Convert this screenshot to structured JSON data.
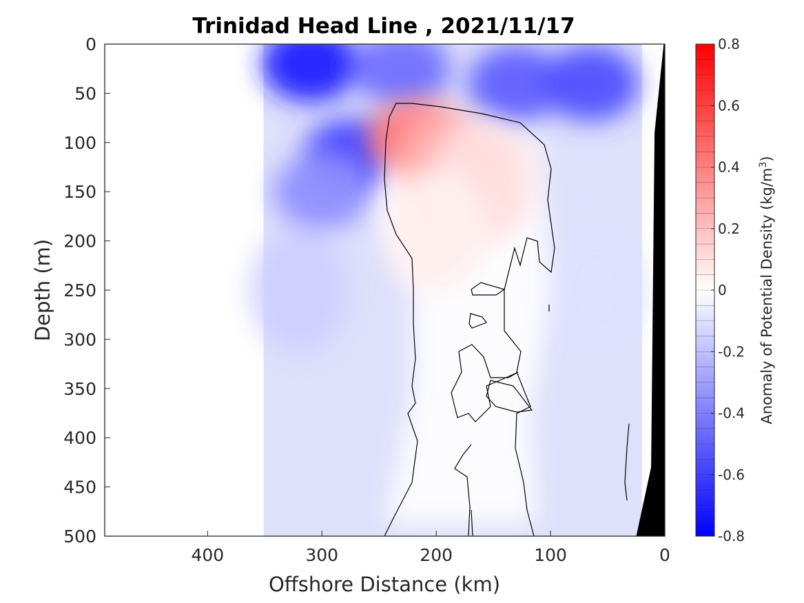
{
  "chart_data": {
    "type": "heatmap",
    "title": "Trinidad Head Line , 2021/11/17",
    "xlabel": "Offshore Distance (km)",
    "ylabel": "Depth (m)",
    "colorbar_label": "Anomaly of Potential Density (kg/m",
    "colorbar_label_sup": "3",
    "colorbar_label_end": ")",
    "xlim": [
      490,
      0
    ],
    "x_reversed": true,
    "ylim": [
      0,
      500
    ],
    "y_reversed": true,
    "clim": [
      -0.8,
      0.8
    ],
    "colormap": "blue-white-red",
    "colormap_colors": {
      "negative": "#0000ff",
      "zero": "#ffffff",
      "positive": "#ff0000"
    },
    "bathymetry_color": "#000000",
    "xticks": [
      "400",
      "300",
      "200",
      "100",
      "0"
    ],
    "xtick_values": [
      400,
      300,
      200,
      100,
      0
    ],
    "yticks": [
      "0",
      "50",
      "100",
      "150",
      "200",
      "250",
      "300",
      "350",
      "400",
      "450",
      "500"
    ],
    "ytick_values": [
      0,
      50,
      100,
      150,
      200,
      250,
      300,
      350,
      400,
      450,
      500
    ],
    "cbticks": [
      "0.8",
      "0.6",
      "0.4",
      "0.2",
      "0",
      "-0.2",
      "-0.4",
      "-0.6",
      "-0.8"
    ],
    "cbtick_values": [
      0.8,
      0.6,
      0.4,
      0.2,
      0,
      -0.2,
      -0.4,
      -0.6,
      -0.8
    ],
    "data_extent_km": [
      351,
      20
    ],
    "features": [
      {
        "x": 310,
        "y": 20,
        "value": -0.7
      },
      {
        "x": 230,
        "y": 25,
        "value": -0.45
      },
      {
        "x": 275,
        "y": 115,
        "value": -0.6
      },
      {
        "x": 300,
        "y": 150,
        "value": -0.35
      },
      {
        "x": 320,
        "y": 250,
        "value": -0.15
      },
      {
        "x": 130,
        "y": 40,
        "value": -0.5
      },
      {
        "x": 65,
        "y": 40,
        "value": -0.55
      },
      {
        "x": 60,
        "y": 250,
        "value": -0.1
      },
      {
        "x": 215,
        "y": 95,
        "value": 0.42
      },
      {
        "x": 190,
        "y": 130,
        "value": 0.25
      },
      {
        "x": 160,
        "y": 140,
        "value": 0.1
      },
      {
        "x": 200,
        "y": 190,
        "value": 0.05
      }
    ]
  }
}
